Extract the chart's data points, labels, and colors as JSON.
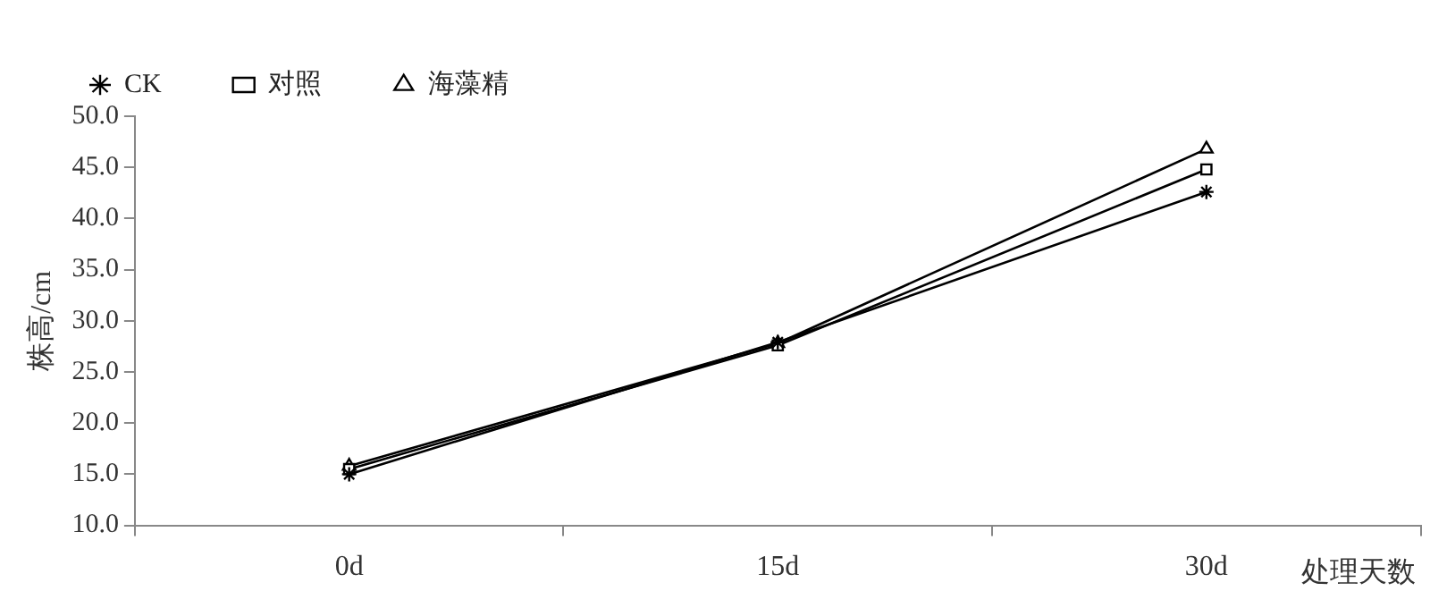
{
  "chart_data": {
    "type": "line",
    "ylabel": "株高/cm",
    "xlabel": "处理天数",
    "categories": [
      "0d",
      "15d",
      "30d"
    ],
    "series": [
      {
        "name": "CK",
        "color": "#000000",
        "marker": "cross",
        "values": [
          15.0,
          27.9,
          42.6
        ]
      },
      {
        "name": "对照",
        "color": "#000000",
        "marker": "square",
        "values": [
          15.5,
          27.6,
          44.8
        ]
      },
      {
        "name": "海藻精",
        "color": "#000000",
        "marker": "triangle",
        "values": [
          15.8,
          27.8,
          46.8
        ]
      }
    ],
    "ylim": [
      10,
      50
    ],
    "yticks": [
      {
        "value": 10,
        "label": "10.0"
      },
      {
        "value": 15,
        "label": "15.0"
      },
      {
        "value": 20,
        "label": "20.0"
      },
      {
        "value": 25,
        "label": "25.0"
      },
      {
        "value": 30,
        "label": "30.0"
      },
      {
        "value": 35,
        "label": "35.0"
      },
      {
        "value": 40,
        "label": "40.0"
      },
      {
        "value": 45,
        "label": "45.0"
      },
      {
        "value": 50,
        "label": "50.0"
      }
    ],
    "grid": false,
    "legend": "top left"
  }
}
